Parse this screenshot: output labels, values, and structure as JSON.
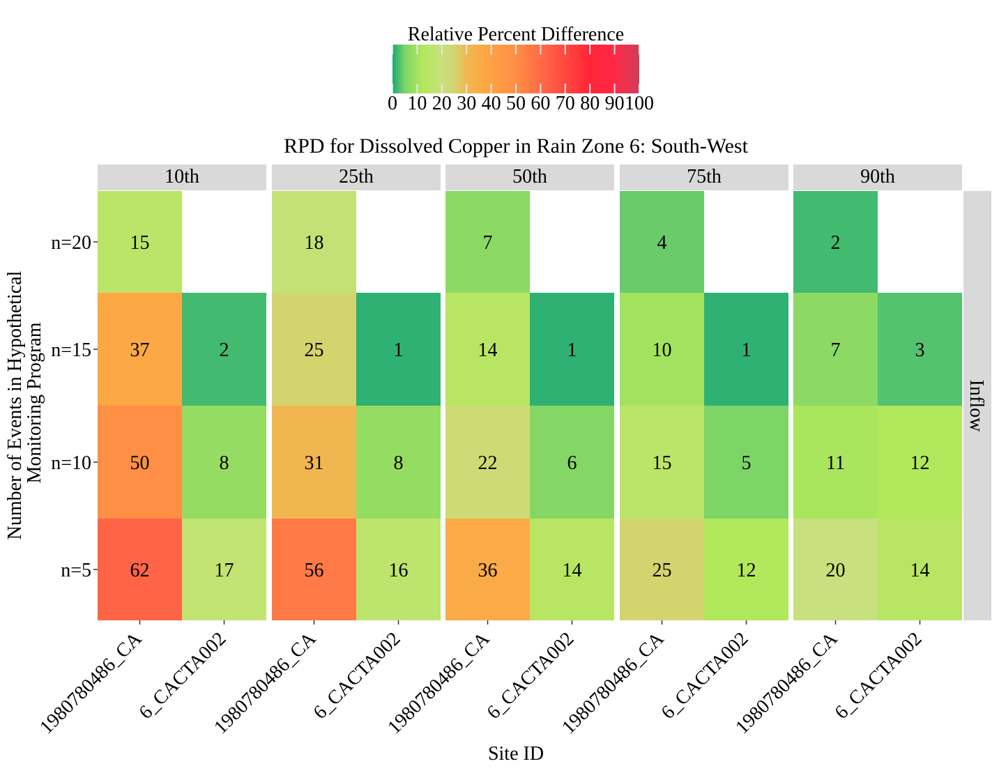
{
  "chart_data": {
    "type": "heatmap",
    "title": "RPD for Dissolved Copper in Rain Zone 6: South-West",
    "xlabel": "Site ID",
    "ylabel": [
      "Number of Events in Hypothetical",
      "Monitoring Program"
    ],
    "legend": {
      "title": "Relative Percent Difference",
      "ticks": [
        0,
        10,
        20,
        30,
        40,
        50,
        60,
        70,
        80,
        90,
        100
      ],
      "range": [
        0,
        100
      ],
      "placement": "top",
      "stops": [
        {
          "value": 0,
          "color": "#1aa876"
        },
        {
          "value": 5,
          "color": "#7dd467"
        },
        {
          "value": 12,
          "color": "#b2e85c"
        },
        {
          "value": 20,
          "color": "#c8e07d"
        },
        {
          "value": 25,
          "color": "#d4d46f"
        },
        {
          "value": 30,
          "color": "#f0b852"
        },
        {
          "value": 37,
          "color": "#fca844"
        },
        {
          "value": 50,
          "color": "#ff8f45"
        },
        {
          "value": 62,
          "color": "#ff6447"
        },
        {
          "value": 80,
          "color": "#ff2537"
        },
        {
          "value": 90,
          "color": "#ff2947"
        },
        {
          "value": 100,
          "color": "#cf3d57"
        }
      ]
    },
    "facets": [
      "10th",
      "25th",
      "50th",
      "75th",
      "90th"
    ],
    "row_strip": "Inflow",
    "sites": [
      "1980780486_CA",
      "6_CACTA002"
    ],
    "rows": [
      "n=20",
      "n=15",
      "n=10",
      "n=5"
    ],
    "values": [
      [
        [
          15,
          null
        ],
        [
          37,
          2
        ],
        [
          50,
          8
        ],
        [
          62,
          17
        ]
      ],
      [
        [
          18,
          null
        ],
        [
          25,
          1
        ],
        [
          31,
          8
        ],
        [
          56,
          16
        ]
      ],
      [
        [
          7,
          null
        ],
        [
          14,
          1
        ],
        [
          22,
          6
        ],
        [
          36,
          14
        ]
      ],
      [
        [
          4,
          null
        ],
        [
          10,
          1
        ],
        [
          15,
          5
        ],
        [
          25,
          12
        ]
      ],
      [
        [
          2,
          null
        ],
        [
          7,
          3
        ],
        [
          11,
          12
        ],
        [
          20,
          14
        ]
      ]
    ]
  }
}
